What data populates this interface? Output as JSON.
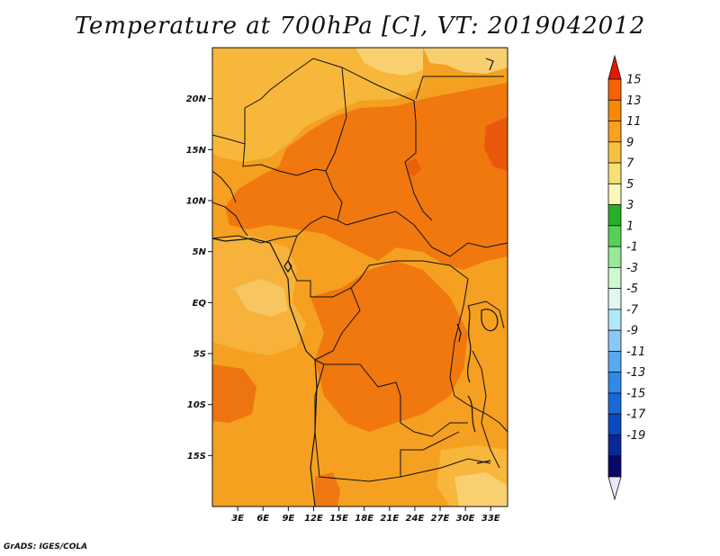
{
  "title": "Temperature at 700hPa [C], VT: 2019042012",
  "credit": "GrADS: IGES/COLA",
  "map": {
    "lon_range": [
      0,
      35
    ],
    "lat_range": [
      -20,
      25
    ],
    "lon_ticks": [
      {
        "lon": 3,
        "label": "3E"
      },
      {
        "lon": 6,
        "label": "6E"
      },
      {
        "lon": 9,
        "label": "9E"
      },
      {
        "lon": 12,
        "label": "12E"
      },
      {
        "lon": 15,
        "label": "15E"
      },
      {
        "lon": 18,
        "label": "18E"
      },
      {
        "lon": 21,
        "label": "21E"
      },
      {
        "lon": 24,
        "label": "24E"
      },
      {
        "lon": 27,
        "label": "27E"
      },
      {
        "lon": 30,
        "label": "30E"
      },
      {
        "lon": 33,
        "label": "33E"
      }
    ],
    "lat_ticks": [
      {
        "lat": 20,
        "label": "20N"
      },
      {
        "lat": 15,
        "label": "15N"
      },
      {
        "lat": 10,
        "label": "10N"
      },
      {
        "lat": 5,
        "label": "5N"
      },
      {
        "lat": 0,
        "label": "EQ"
      },
      {
        "lat": -5,
        "label": "5S"
      },
      {
        "lat": -10,
        "label": "10S"
      },
      {
        "lat": -15,
        "label": "15S"
      }
    ],
    "background_color": "#f5a020"
  },
  "colorbar": {
    "labels": [
      "15",
      "13",
      "11",
      "9",
      "7",
      "5",
      "3",
      "1",
      "-1",
      "-3",
      "-5",
      "-7",
      "-9",
      "-11",
      "-13",
      "-15",
      "-17",
      "-19"
    ],
    "colors": [
      "#e81800",
      "#f86000",
      "#f88800",
      "#f8a020",
      "#f8c040",
      "#f8e078",
      "#f8f8b8",
      "#28b028",
      "#58d058",
      "#98e898",
      "#d0f8d0",
      "#e0f8f0",
      "#b0e8f8",
      "#88c8f8",
      "#58a8f0",
      "#3088e8",
      "#1868d8",
      "#0848c0",
      "#082898",
      "#080868",
      "#e8e8f8"
    ]
  }
}
